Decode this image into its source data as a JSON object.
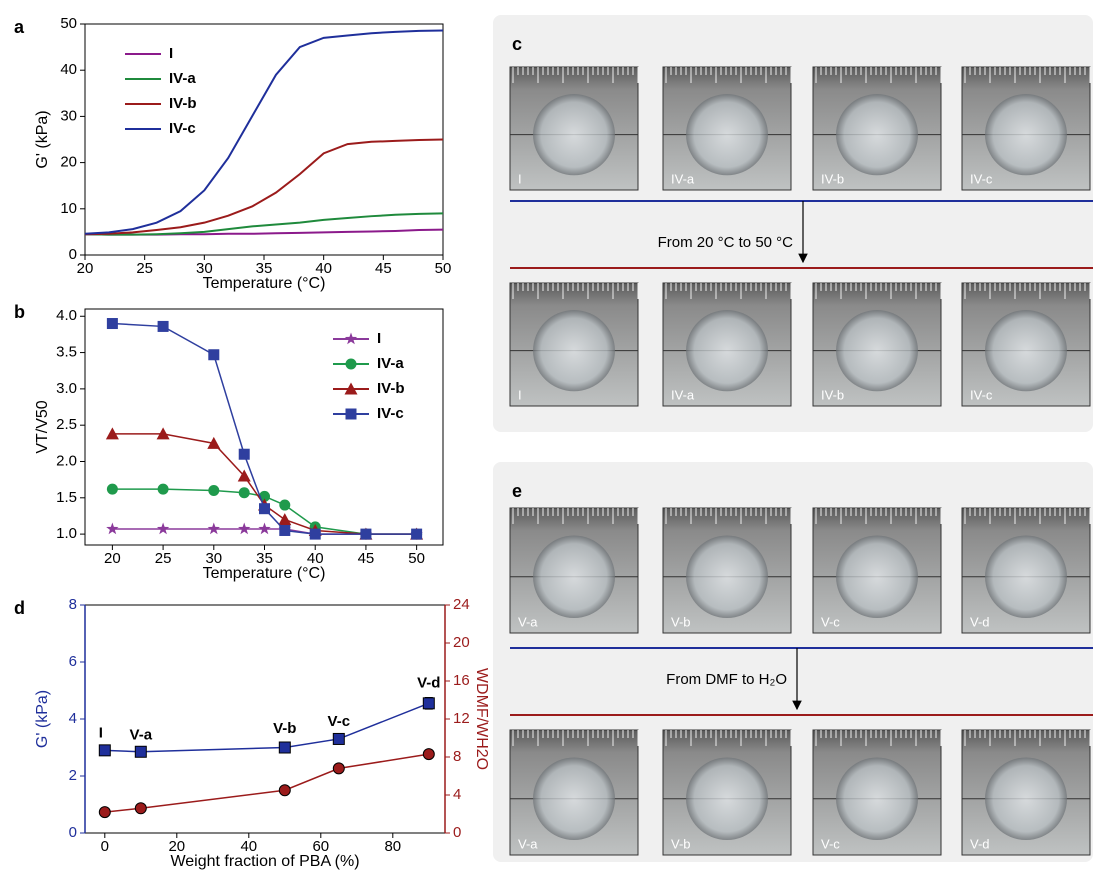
{
  "chart_data": [
    {
      "type": "line",
      "panel_label": "a",
      "xlabel": "Temperature (°C)",
      "ylabel": "G' (kPa)",
      "x": [
        20,
        22,
        24,
        26,
        28,
        30,
        32,
        34,
        36,
        38,
        40,
        42,
        44,
        46,
        48,
        50
      ],
      "xlim": [
        20,
        50
      ],
      "xticks": [
        20,
        25,
        30,
        35,
        40,
        45,
        50
      ],
      "ylim": [
        0,
        50
      ],
      "yticks": [
        0,
        10,
        20,
        30,
        40,
        50
      ],
      "legend": "upper left",
      "series": [
        {
          "name": "I",
          "color": "#8b1a8b",
          "values": [
            4.5,
            4.4,
            4.4,
            4.4,
            4.5,
            4.5,
            4.6,
            4.6,
            4.7,
            4.8,
            4.9,
            5.0,
            5.1,
            5.2,
            5.4,
            5.5
          ]
        },
        {
          "name": "IV-a",
          "color": "#1f8a3c",
          "values": [
            4.5,
            4.4,
            4.4,
            4.5,
            4.7,
            5.0,
            5.6,
            6.2,
            6.6,
            7.0,
            7.6,
            8.0,
            8.4,
            8.7,
            8.9,
            9.0
          ]
        },
        {
          "name": "IV-b",
          "color": "#9b1b1b",
          "values": [
            4.5,
            4.6,
            4.9,
            5.4,
            6.0,
            7.0,
            8.5,
            10.5,
            13.5,
            17.5,
            22,
            24,
            24.5,
            24.7,
            24.9,
            25
          ]
        },
        {
          "name": "IV-c",
          "color": "#1f2f9b",
          "values": [
            4.6,
            4.9,
            5.6,
            7.0,
            9.5,
            14.0,
            21,
            30,
            39,
            45,
            47,
            47.5,
            48,
            48.3,
            48.5,
            48.6
          ]
        }
      ]
    },
    {
      "type": "line",
      "panel_label": "b",
      "xlabel": "Temperature (°C)",
      "ylabel": "VT/V50",
      "x": [
        20,
        25,
        30,
        33,
        35,
        37,
        40,
        45,
        50
      ],
      "xlim": [
        17.3,
        52.6
      ],
      "xticks": [
        20,
        25,
        30,
        35,
        40,
        45,
        50
      ],
      "ylim": [
        0.85,
        4.1
      ],
      "yticks": [
        {
          "value": 1,
          "label": "1.0"
        },
        {
          "value": 1.5,
          "label": "1.5"
        },
        {
          "value": 2,
          "label": "2.0"
        },
        {
          "value": 2.5,
          "label": "2.5"
        },
        {
          "value": 3,
          "label": "3.0"
        },
        {
          "value": 3.5,
          "label": "3.5"
        },
        {
          "value": 4,
          "label": "4.0"
        }
      ],
      "legend": "upper right",
      "series": [
        {
          "name": "I",
          "color": "#8b3a9b",
          "marker": "star",
          "values": [
            1.07,
            1.07,
            1.07,
            1.07,
            1.07,
            1.07,
            1.0,
            1.0,
            1.0
          ]
        },
        {
          "name": "IV-a",
          "color": "#1f9a4c",
          "marker": "circle",
          "values": [
            1.62,
            1.62,
            1.6,
            1.57,
            1.52,
            1.4,
            1.1,
            1.0,
            1.0
          ]
        },
        {
          "name": "IV-b",
          "color": "#9b1b1b",
          "marker": "triangle",
          "values": [
            2.38,
            2.38,
            2.25,
            1.8,
            1.4,
            1.2,
            1.05,
            1.0,
            1.0
          ]
        },
        {
          "name": "IV-c",
          "color": "#2f3f9f",
          "marker": "square",
          "values": [
            3.9,
            3.86,
            3.47,
            2.1,
            1.35,
            1.05,
            1.0,
            1.0,
            1.0
          ]
        }
      ]
    },
    {
      "type": "line",
      "panel_label": "d",
      "xlabel": "Weight fraction of PBA (%)",
      "ylabel": "G' (kPa)",
      "y2label": "WDMF/WH2O",
      "x": [
        0,
        10,
        50,
        65,
        90
      ],
      "xlim": [
        -5.5,
        94.5
      ],
      "xticks": [
        0,
        20,
        40,
        60,
        80
      ],
      "ylim": [
        0,
        8
      ],
      "yticks": [
        0,
        2,
        4,
        6,
        8
      ],
      "y2lim": [
        0,
        24
      ],
      "y2ticks": [
        0,
        4,
        8,
        12,
        16,
        20,
        24
      ],
      "point_labels": [
        "I",
        "V-a",
        "V-b",
        "V-c",
        "V-d"
      ],
      "series": [
        {
          "color": "#1f2f9b",
          "marker": "square",
          "values": [
            2.9,
            2.85,
            3.0,
            3.3,
            4.55
          ],
          "errors": [
            0.1,
            0.08,
            0.15,
            0.1,
            0.2
          ]
        },
        {
          "color": "#9b1b1b",
          "marker": "circle",
          "axis": "y2",
          "values": [
            2.2,
            2.6,
            4.5,
            6.8,
            8.3
          ],
          "errors": [
            0.2,
            0.2,
            0.2,
            0.2,
            0.4
          ]
        }
      ]
    }
  ],
  "photo_panels": [
    {
      "panel_label": "c",
      "top_labels": [
        "I",
        "IV-a",
        "IV-b",
        "IV-c"
      ],
      "transition": "From 20 °C to 50 °C",
      "bottom_labels": [
        "I",
        "IV-a",
        "IV-b",
        "IV-c"
      ]
    },
    {
      "panel_label": "e",
      "top_labels": [
        "V-a",
        "V-b",
        "V-c",
        "V-d"
      ],
      "transition": "From DMF to H₂O",
      "bottom_labels": [
        "V-a",
        "V-b",
        "V-c",
        "V-d"
      ]
    }
  ]
}
